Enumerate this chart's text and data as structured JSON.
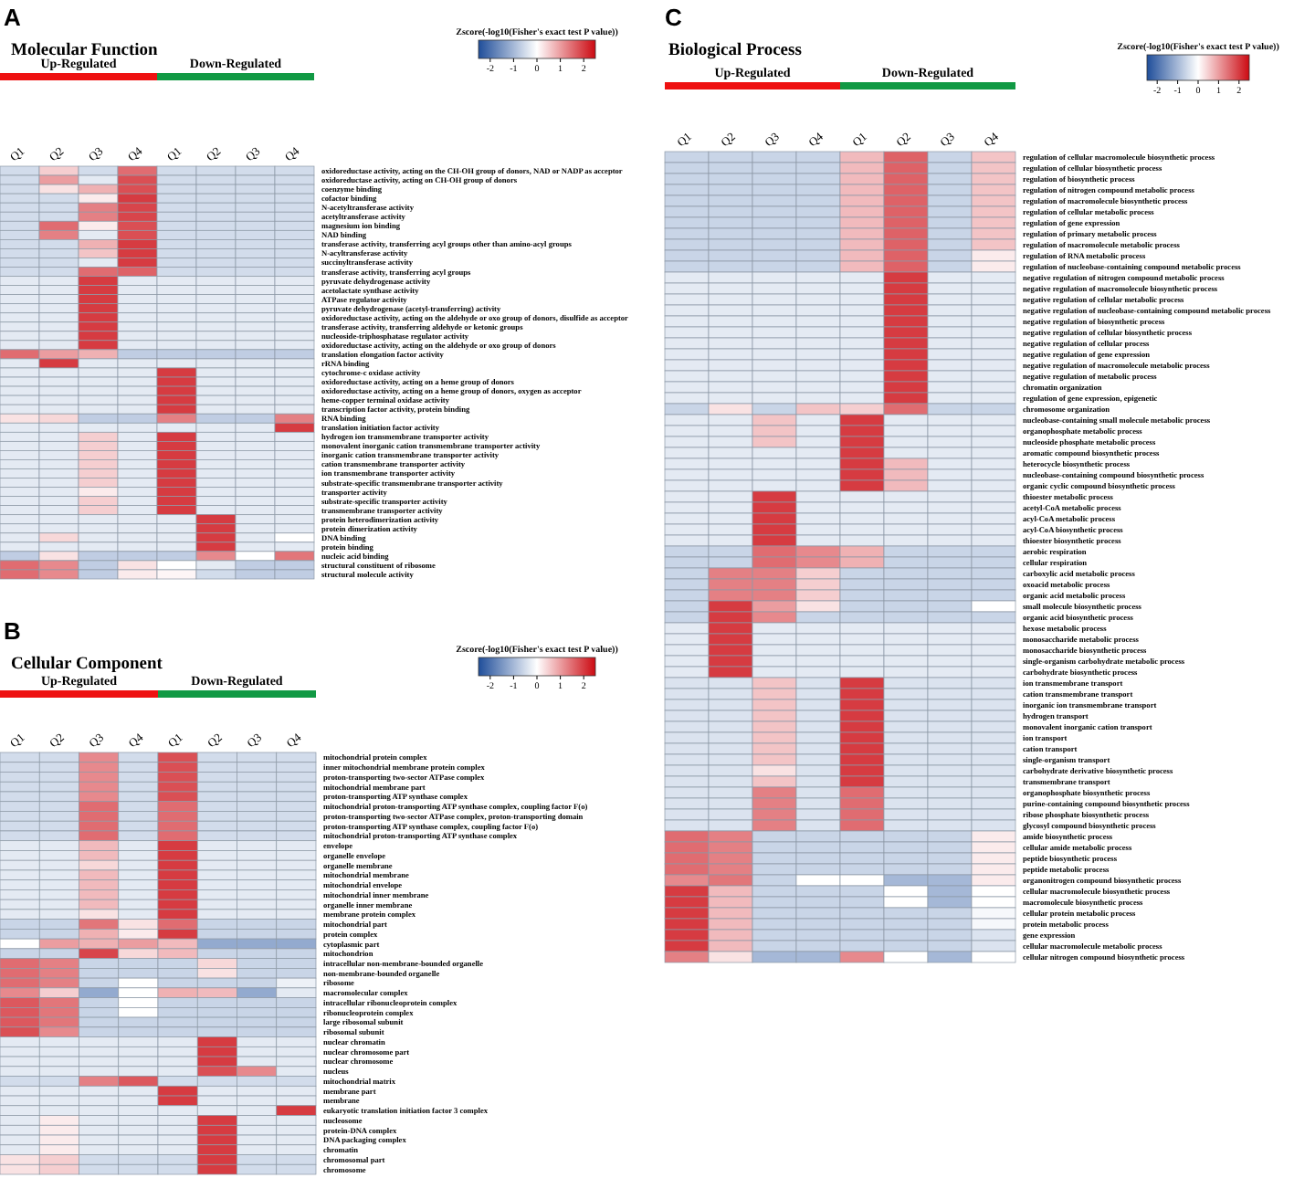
{
  "chart_data": [
    {
      "type": "heatmap",
      "title": "Molecular Function",
      "annotations": [
        "A",
        "Up-Regulated",
        "Down-Regulated"
      ],
      "clabel": "Zscore(-log10(Fisher's exact test P value))",
      "clim": [
        -2.5,
        2.5
      ],
      "cticks": [
        -2,
        -1,
        0,
        1,
        2
      ],
      "categories": [
        "Q1",
        "Q2",
        "Q3",
        "Q4",
        "Q1",
        "Q2",
        "Q3",
        "Q4"
      ],
      "y_categories": [
        "oxidoreductase activity, acting on the CH-OH group of donors, NAD or NADP as acceptor",
        "oxidoreductase activity, acting on CH-OH group of donors",
        "coenzyme binding",
        "cofactor binding",
        "N-acetyltransferase activity",
        "acetyltransferase activity",
        "magnesium ion binding",
        "NAD binding",
        "transferase activity, transferring acyl groups other than amino-acyl groups",
        "N-acyltransferase activity",
        "succinyltransferase activity",
        "transferase activity, transferring acyl groups",
        "pyruvate dehydrogenase activity",
        "acetolactate synthase activity",
        "ATPase regulator activity",
        "pyruvate dehydrogenase (acetyl-transferring) activity",
        "oxidoreductase activity, acting on the aldehyde or oxo group of donors, disulfide as acceptor",
        "transferase activity, transferring aldehyde or ketonic groups",
        "nucleoside-triphosphatase regulator activity",
        "oxidoreductase activity, acting on the aldehyde or oxo group of donors",
        "translation elongation factor activity",
        "rRNA binding",
        "cytochrome-c oxidase activity",
        "oxidoreductase activity, acting on a heme group of donors",
        "oxidoreductase activity, acting on a heme group of donors, oxygen as acceptor",
        "heme-copper terminal oxidase activity",
        "transcription factor activity, protein binding",
        "RNA binding",
        "translation initiation factor activity",
        "hydrogen ion transmembrane transporter activity",
        "monovalent inorganic cation transmembrane transporter activity",
        "inorganic cation transmembrane transporter activity",
        "cation transmembrane transporter activity",
        "ion transmembrane transporter activity",
        "substrate-specific transmembrane transporter activity",
        "transporter activity",
        "substrate-specific transporter activity",
        "transmembrane transporter activity",
        "protein heterodimerization activity",
        "protein dimerization activity",
        "DNA binding",
        "protein binding",
        "nucleic acid binding",
        "structural constituent of ribosome",
        "structural molecule activity"
      ],
      "cells": [
        [
          -0.5,
          0.5,
          -0.5,
          1.5,
          -0.5,
          -0.5,
          -0.5,
          -0.5
        ],
        [
          -0.5,
          1,
          -0.3,
          1.8,
          -0.5,
          -0.5,
          -0.5,
          -0.5
        ],
        [
          -0.5,
          0.3,
          0.8,
          1.8,
          -0.5,
          -0.5,
          -0.5,
          -0.5
        ],
        [
          -0.5,
          -0.5,
          0.2,
          2,
          -0.5,
          -0.5,
          -0.5,
          -0.5
        ],
        [
          -0.5,
          -0.5,
          1.3,
          1.9,
          -0.5,
          -0.5,
          -0.5,
          -0.5
        ],
        [
          -0.5,
          -0.5,
          1.3,
          1.9,
          -0.5,
          -0.5,
          -0.5,
          -0.5
        ],
        [
          -0.5,
          1.5,
          0.2,
          1.8,
          -0.5,
          -0.5,
          -0.5,
          -0.5
        ],
        [
          -0.5,
          1.3,
          -0.3,
          1.8,
          -0.5,
          -0.5,
          -0.5,
          -0.5
        ],
        [
          -0.5,
          -0.5,
          0.8,
          2,
          -0.5,
          -0.5,
          -0.5,
          -0.5
        ],
        [
          -0.5,
          -0.5,
          0.6,
          2,
          -0.5,
          -0.5,
          -0.5,
          -0.5
        ],
        [
          -0.5,
          -0.5,
          -0.3,
          2,
          -0.5,
          -0.5,
          -0.5,
          -0.5
        ],
        [
          -0.5,
          -0.5,
          1.5,
          1.6,
          -0.5,
          -0.5,
          -0.5,
          -0.5
        ],
        [
          -0.3,
          -0.3,
          2,
          -0.3,
          -0.3,
          -0.3,
          -0.3,
          -0.3
        ],
        [
          -0.3,
          -0.3,
          2,
          -0.3,
          -0.3,
          -0.3,
          -0.3,
          -0.3
        ],
        [
          -0.3,
          -0.3,
          2,
          -0.3,
          -0.3,
          -0.3,
          -0.3,
          -0.3
        ],
        [
          -0.3,
          -0.3,
          2,
          -0.3,
          -0.3,
          -0.3,
          -0.3,
          -0.3
        ],
        [
          -0.3,
          -0.3,
          2,
          -0.3,
          -0.3,
          -0.3,
          -0.3,
          -0.3
        ],
        [
          -0.3,
          -0.3,
          2,
          -0.3,
          -0.3,
          -0.3,
          -0.3,
          -0.3
        ],
        [
          -0.3,
          -0.3,
          2,
          -0.3,
          -0.3,
          -0.3,
          -0.3,
          -0.3
        ],
        [
          -0.3,
          -0.3,
          2,
          -0.3,
          -0.3,
          -0.3,
          -0.3,
          -0.3
        ],
        [
          1.5,
          1,
          0.8,
          -0.7,
          -0.7,
          -0.7,
          -0.7,
          -0.7
        ],
        [
          -0.3,
          2,
          -0.3,
          -0.3,
          -0.3,
          -0.3,
          -0.3,
          -0.3
        ],
        [
          -0.3,
          -0.3,
          -0.3,
          -0.3,
          2,
          -0.3,
          -0.3,
          -0.3
        ],
        [
          -0.3,
          -0.3,
          -0.3,
          -0.3,
          2,
          -0.3,
          -0.3,
          -0.3
        ],
        [
          -0.3,
          -0.3,
          -0.3,
          -0.3,
          2,
          -0.3,
          -0.3,
          -0.3
        ],
        [
          -0.3,
          -0.3,
          -0.3,
          -0.3,
          2,
          -0.3,
          -0.3,
          -0.3
        ],
        [
          -0.3,
          -0.3,
          -0.3,
          -0.3,
          2,
          -0.3,
          -0.3,
          -0.3
        ],
        [
          0.3,
          0.4,
          -0.7,
          -0.7,
          1.3,
          -0.7,
          -0.7,
          1.3
        ],
        [
          -0.3,
          -0.3,
          -0.3,
          -0.3,
          -0.3,
          -0.3,
          -0.3,
          2
        ],
        [
          -0.3,
          -0.3,
          0.5,
          -0.3,
          2,
          -0.3,
          -0.3,
          -0.3
        ],
        [
          -0.3,
          -0.3,
          0.5,
          -0.3,
          2,
          -0.3,
          -0.3,
          -0.3
        ],
        [
          -0.3,
          -0.3,
          0.5,
          -0.3,
          2,
          -0.3,
          -0.3,
          -0.3
        ],
        [
          -0.3,
          -0.3,
          0.5,
          -0.3,
          2,
          -0.3,
          -0.3,
          -0.3
        ],
        [
          -0.3,
          -0.3,
          0.5,
          -0.3,
          2,
          -0.3,
          -0.3,
          -0.3
        ],
        [
          -0.3,
          -0.3,
          0.5,
          -0.3,
          2,
          -0.3,
          -0.3,
          -0.3
        ],
        [
          -0.3,
          -0.3,
          0.2,
          -0.3,
          2,
          -0.3,
          -0.3,
          -0.3
        ],
        [
          -0.3,
          -0.3,
          0.5,
          -0.3,
          2,
          -0.3,
          -0.3,
          -0.3
        ],
        [
          -0.3,
          -0.3,
          0.5,
          -0.3,
          2,
          -0.3,
          -0.3,
          -0.3
        ],
        [
          -0.3,
          -0.3,
          -0.3,
          -0.3,
          -0.3,
          2,
          -0.3,
          -0.3
        ],
        [
          -0.3,
          -0.3,
          -0.3,
          -0.3,
          -0.3,
          2,
          -0.3,
          -0.3
        ],
        [
          -0.3,
          0.4,
          -0.3,
          -0.3,
          -0.3,
          2,
          -0.3,
          0
        ],
        [
          -0.3,
          -0.3,
          -0.3,
          -0.3,
          -0.3,
          2,
          -0.3,
          -0.3
        ],
        [
          -0.7,
          0.3,
          -0.7,
          -0.7,
          -0.7,
          1.2,
          0,
          1.4
        ],
        [
          1.5,
          1.2,
          -0.7,
          0.3,
          0,
          -0.3,
          -0.7,
          -0.7
        ],
        [
          1.5,
          1.2,
          -0.7,
          0.2,
          0.1,
          -0.5,
          -0.7,
          -0.7
        ]
      ]
    },
    {
      "type": "heatmap",
      "title": "Cellular Component",
      "annotations": [
        "B",
        "Up-Regulated",
        "Down-Regulated"
      ],
      "clabel": "Zscore(-log10(Fisher's exact test P value))",
      "clim": [
        -2.5,
        2.5
      ],
      "cticks": [
        -2,
        -1,
        0,
        1,
        2
      ],
      "categories": [
        "Q1",
        "Q2",
        "Q3",
        "Q4",
        "Q1",
        "Q2",
        "Q3",
        "Q4"
      ],
      "y_categories": [
        "mitochondrial protein complex",
        "inner mitochondrial membrane protein complex",
        "proton-transporting two-sector ATPase complex",
        "mitochondrial membrane part",
        "proton-transporting ATP synthase complex",
        "mitochondrial proton-transporting ATP synthase complex, coupling factor F(o)",
        "proton-transporting two-sector ATPase complex, proton-transporting domain",
        "proton-transporting ATP synthase complex, coupling factor F(o)",
        "mitochondrial proton-transporting ATP synthase complex",
        "envelope",
        "organelle envelope",
        "organelle membrane",
        "mitochondrial membrane",
        "mitochondrial envelope",
        "mitochondrial inner membrane",
        "organelle inner membrane",
        "membrane protein complex",
        "mitochondrial part",
        "protein complex",
        "cytoplasmic part",
        "mitochondrion",
        "intracellular non-membrane-bounded organelle",
        "non-membrane-bounded organelle",
        "ribosome",
        "macromolecular complex",
        "intracellular ribonucleoprotein complex",
        "ribonucleoprotein complex",
        "large ribosomal subunit",
        "ribosomal subunit",
        "nuclear chromatin",
        "nuclear chromosome part",
        "nuclear chromosome",
        "nucleus",
        "mitochondrial matrix",
        "membrane part",
        "membrane",
        "eukaryotic translation initiation factor 3 complex",
        "nucleosome",
        "protein-DNA complex",
        "DNA packaging complex",
        "chromatin",
        "chromosomal part",
        "chromosome"
      ],
      "cells": [
        [
          -0.5,
          -0.5,
          1.2,
          -0.5,
          1.8,
          -0.5,
          -0.5,
          -0.5
        ],
        [
          -0.5,
          -0.5,
          1.2,
          -0.5,
          1.8,
          -0.5,
          -0.5,
          -0.5
        ],
        [
          -0.5,
          -0.5,
          1.2,
          -0.5,
          1.8,
          -0.5,
          -0.5,
          -0.5
        ],
        [
          -0.5,
          -0.5,
          1.2,
          -0.5,
          1.8,
          -0.5,
          -0.5,
          -0.5
        ],
        [
          -0.5,
          -0.5,
          1.2,
          -0.5,
          1.8,
          -0.5,
          -0.5,
          -0.5
        ],
        [
          -0.5,
          -0.5,
          1.5,
          -0.5,
          1.5,
          -0.5,
          -0.5,
          -0.5
        ],
        [
          -0.5,
          -0.5,
          1.5,
          -0.5,
          1.5,
          -0.5,
          -0.5,
          -0.5
        ],
        [
          -0.5,
          -0.5,
          1.5,
          -0.5,
          1.5,
          -0.5,
          -0.5,
          -0.5
        ],
        [
          -0.5,
          -0.5,
          1.5,
          -0.5,
          1.5,
          -0.5,
          -0.5,
          -0.5
        ],
        [
          -0.3,
          -0.3,
          0.7,
          -0.3,
          2,
          -0.3,
          -0.3,
          -0.3
        ],
        [
          -0.3,
          -0.3,
          0.7,
          -0.3,
          2,
          -0.3,
          -0.3,
          -0.3
        ],
        [
          -0.3,
          -0.3,
          0.4,
          -0.3,
          2,
          -0.3,
          -0.3,
          -0.3
        ],
        [
          -0.3,
          -0.3,
          0.7,
          -0.3,
          2,
          -0.3,
          -0.3,
          -0.3
        ],
        [
          -0.3,
          -0.3,
          0.7,
          -0.3,
          2,
          -0.3,
          -0.3,
          -0.3
        ],
        [
          -0.3,
          -0.3,
          0.7,
          -0.3,
          2,
          -0.3,
          -0.3,
          -0.3
        ],
        [
          -0.3,
          -0.3,
          0.7,
          -0.3,
          2,
          -0.3,
          -0.3,
          -0.3
        ],
        [
          -0.3,
          -0.3,
          0.3,
          -0.3,
          2,
          -0.3,
          -0.3,
          -0.3
        ],
        [
          -0.6,
          -0.6,
          1.4,
          0.3,
          1.5,
          -0.6,
          -0.6,
          -0.6
        ],
        [
          -0.6,
          -0.6,
          0.8,
          0.2,
          2,
          -0.6,
          -0.6,
          -0.6
        ],
        [
          0,
          1,
          0.8,
          1,
          0.7,
          -1.2,
          -1.2,
          -1.2
        ],
        [
          -0.6,
          -0.6,
          1.9,
          0.4,
          0.7,
          -0.6,
          -0.6,
          -0.6
        ],
        [
          1.5,
          1.3,
          -0.6,
          -0.6,
          -0.6,
          0.4,
          -0.6,
          -0.6
        ],
        [
          1.5,
          1.3,
          -0.6,
          -0.6,
          -0.6,
          0.3,
          -0.6,
          -0.6
        ],
        [
          1.5,
          1.3,
          -0.6,
          0,
          -0.6,
          -0.6,
          -0.6,
          -0.2
        ],
        [
          1.2,
          0.5,
          -1.2,
          0,
          0.8,
          0.7,
          -1.2,
          -0.3
        ],
        [
          1.7,
          1.4,
          -0.6,
          0,
          -0.6,
          -0.6,
          -0.6,
          -0.6
        ],
        [
          1.7,
          1.4,
          -0.6,
          0,
          -0.6,
          -0.6,
          -0.6,
          -0.6
        ],
        [
          1.7,
          1.4,
          -0.6,
          -0.6,
          -0.6,
          -0.6,
          -0.6,
          -0.6
        ],
        [
          1.8,
          1.2,
          -0.6,
          -0.6,
          -0.6,
          -0.6,
          -0.6,
          -0.6
        ],
        [
          -0.3,
          -0.3,
          -0.3,
          -0.3,
          -0.3,
          2,
          -0.3,
          -0.3
        ],
        [
          -0.3,
          -0.3,
          -0.3,
          -0.3,
          -0.3,
          2,
          -0.3,
          -0.3
        ],
        [
          -0.3,
          -0.3,
          -0.3,
          -0.3,
          -0.3,
          2,
          -0.3,
          -0.3
        ],
        [
          -0.3,
          -0.3,
          -0.3,
          -0.3,
          -0.3,
          1.8,
          1.2,
          -0.3
        ],
        [
          -0.5,
          -0.5,
          1.3,
          1.7,
          -0.5,
          -0.5,
          -0.5,
          -0.5
        ],
        [
          -0.3,
          -0.3,
          -0.3,
          -0.3,
          2,
          -0.3,
          -0.3,
          -0.3
        ],
        [
          -0.3,
          -0.3,
          -0.3,
          -0.3,
          2,
          -0.3,
          -0.3,
          -0.3
        ],
        [
          -0.3,
          -0.3,
          -0.3,
          -0.3,
          -0.3,
          -0.3,
          -0.3,
          2
        ],
        [
          -0.3,
          0.2,
          -0.3,
          -0.3,
          -0.3,
          2,
          -0.3,
          -0.3
        ],
        [
          -0.3,
          0.2,
          -0.3,
          -0.3,
          -0.3,
          2,
          -0.3,
          -0.3
        ],
        [
          -0.3,
          0.2,
          -0.3,
          -0.3,
          -0.3,
          2,
          -0.3,
          -0.3
        ],
        [
          -0.3,
          0.2,
          -0.3,
          -0.3,
          -0.3,
          2,
          -0.3,
          -0.3
        ],
        [
          0.3,
          0.5,
          -0.5,
          -0.5,
          -0.5,
          2,
          -0.5,
          -0.5
        ],
        [
          0.3,
          0.5,
          -0.5,
          -0.5,
          -0.5,
          2,
          -0.5,
          -0.5
        ]
      ]
    },
    {
      "type": "heatmap",
      "title": "Biological Process",
      "annotations": [
        "C",
        "Up-Regulated",
        "Down-Regulated"
      ],
      "clabel": "Zscore(-log10(Fisher's exact test P value))",
      "clim": [
        -2.5,
        2.5
      ],
      "cticks": [
        -2,
        -1,
        0,
        1,
        2
      ],
      "categories": [
        "Q1",
        "Q2",
        "Q3",
        "Q4",
        "Q1",
        "Q2",
        "Q3",
        "Q4"
      ],
      "y_categories": [
        "regulation of cellular macromolecule biosynthetic process",
        "regulation of cellular biosynthetic process",
        "regulation of biosynthetic process",
        "regulation of nitrogen compound metabolic process",
        "regulation of macromolecule biosynthetic process",
        "regulation of cellular metabolic process",
        "regulation of gene expression",
        "regulation of primary metabolic process",
        "regulation of macromolecule metabolic process",
        "regulation of RNA metabolic process",
        "regulation of nucleobase-containing compound metabolic process",
        "negative regulation of nitrogen compound metabolic process",
        "negative regulation of macromolecule biosynthetic process",
        "negative regulation of cellular metabolic process",
        "negative regulation of nucleobase-containing compound metabolic process",
        "negative regulation of biosynthetic process",
        "negative regulation of cellular biosynthetic process",
        "negative regulation of cellular process",
        "negative regulation of gene expression",
        "negative regulation of macromolecule metabolic process",
        "negative regulation of metabolic process",
        "chromatin organization",
        "regulation of gene expression, epigenetic",
        "chromosome organization",
        "nucleobase-containing small molecule metabolic process",
        "organophosphate metabolic process",
        "nucleoside phosphate metabolic process",
        "aromatic compound biosynthetic process",
        "heterocycle biosynthetic process",
        "nucleobase-containing compound biosynthetic process",
        "organic cyclic compound biosynthetic process",
        "thioester metabolic process",
        "acetyl-CoA metabolic process",
        "acyl-CoA metabolic process",
        "acyl-CoA biosynthetic process",
        "thioester biosynthetic process",
        "aerobic respiration",
        "cellular respiration",
        "carboxylic acid metabolic process",
        "oxoacid metabolic process",
        "organic acid metabolic process",
        "small molecule biosynthetic process",
        "organic acid biosynthetic process",
        "hexose metabolic process",
        "monosaccharide metabolic process",
        "monosaccharide biosynthetic process",
        "single-organism carbohydrate metabolic process",
        "carbohydrate biosynthetic process",
        "ion transmembrane transport",
        "cation transmembrane transport",
        "inorganic ion transmembrane transport",
        "hydrogen transport",
        "monovalent inorganic cation transport",
        "ion transport",
        "cation transport",
        "single-organism transport",
        "carbohydrate derivative biosynthetic process",
        "transmembrane transport",
        "organophosphate biosynthetic process",
        "purine-containing compound biosynthetic process",
        "ribose phosphate biosynthetic process",
        "glycosyl compound biosynthetic process",
        "amide biosynthetic process",
        "cellular amide metabolic process",
        "peptide biosynthetic process",
        "peptide metabolic process",
        "organonitrogen compound biosynthetic process",
        "cellular macromolecule biosynthetic process",
        "macromolecule biosynthetic process",
        "cellular protein metabolic process",
        "protein metabolic process",
        "gene expression",
        "cellular macromolecule metabolic process",
        "cellular nitrogen compound biosynthetic process"
      ],
      "cells": [
        [
          -0.6,
          -0.6,
          -0.6,
          -0.6,
          0.7,
          1.6,
          -0.6,
          0.6
        ],
        [
          -0.6,
          -0.6,
          -0.6,
          -0.6,
          0.7,
          1.6,
          -0.6,
          0.6
        ],
        [
          -0.6,
          -0.6,
          -0.6,
          -0.6,
          0.7,
          1.6,
          -0.6,
          0.6
        ],
        [
          -0.6,
          -0.6,
          -0.6,
          -0.6,
          0.7,
          1.6,
          -0.6,
          0.6
        ],
        [
          -0.6,
          -0.6,
          -0.6,
          -0.6,
          0.7,
          1.6,
          -0.6,
          0.6
        ],
        [
          -0.6,
          -0.6,
          -0.6,
          -0.6,
          0.7,
          1.6,
          -0.6,
          0.6
        ],
        [
          -0.6,
          -0.6,
          -0.6,
          -0.6,
          0.7,
          1.6,
          -0.6,
          0.6
        ],
        [
          -0.6,
          -0.6,
          -0.6,
          -0.6,
          0.7,
          1.6,
          -0.6,
          0.6
        ],
        [
          -0.6,
          -0.6,
          -0.6,
          -0.6,
          0.7,
          1.6,
          -0.6,
          0.6
        ],
        [
          -0.6,
          -0.6,
          -0.6,
          -0.6,
          0.7,
          1.6,
          -0.6,
          0.2
        ],
        [
          -0.6,
          -0.6,
          -0.6,
          -0.6,
          0.7,
          1.6,
          -0.6,
          0.2
        ],
        [
          -0.3,
          -0.3,
          -0.3,
          -0.3,
          -0.3,
          2,
          -0.3,
          -0.3
        ],
        [
          -0.3,
          -0.3,
          -0.3,
          -0.3,
          -0.3,
          2,
          -0.3,
          -0.3
        ],
        [
          -0.3,
          -0.3,
          -0.3,
          -0.3,
          -0.3,
          2,
          -0.3,
          -0.3
        ],
        [
          -0.3,
          -0.3,
          -0.3,
          -0.3,
          -0.3,
          2,
          -0.3,
          -0.3
        ],
        [
          -0.3,
          -0.3,
          -0.3,
          -0.3,
          -0.3,
          2,
          -0.3,
          -0.3
        ],
        [
          -0.3,
          -0.3,
          -0.3,
          -0.3,
          -0.3,
          2,
          -0.3,
          -0.3
        ],
        [
          -0.3,
          -0.3,
          -0.3,
          -0.3,
          -0.3,
          2,
          -0.3,
          -0.3
        ],
        [
          -0.3,
          -0.3,
          -0.3,
          -0.3,
          -0.3,
          2,
          -0.3,
          -0.3
        ],
        [
          -0.3,
          -0.3,
          -0.3,
          -0.3,
          -0.3,
          2,
          -0.3,
          -0.3
        ],
        [
          -0.3,
          -0.3,
          -0.3,
          -0.3,
          -0.3,
          2,
          -0.3,
          -0.3
        ],
        [
          -0.3,
          -0.3,
          -0.3,
          -0.3,
          -0.3,
          2,
          -0.3,
          -0.3
        ],
        [
          -0.3,
          -0.3,
          -0.3,
          -0.3,
          -0.3,
          2,
          -0.3,
          -0.3
        ],
        [
          -0.6,
          0.3,
          -0.6,
          0.6,
          0.5,
          1.5,
          -0.6,
          -0.6
        ],
        [
          -0.3,
          -0.3,
          0.6,
          -0.3,
          2,
          -0.3,
          -0.3,
          -0.3
        ],
        [
          -0.3,
          -0.3,
          0.6,
          -0.3,
          2,
          -0.3,
          -0.3,
          -0.3
        ],
        [
          -0.3,
          -0.3,
          0.6,
          -0.3,
          2,
          -0.3,
          -0.3,
          -0.3
        ],
        [
          -0.3,
          -0.3,
          -0.3,
          -0.3,
          2,
          -0.3,
          -0.3,
          -0.3
        ],
        [
          -0.3,
          -0.3,
          -0.3,
          -0.3,
          2,
          0.7,
          -0.3,
          -0.3
        ],
        [
          -0.3,
          -0.3,
          -0.3,
          -0.3,
          2,
          0.7,
          -0.3,
          -0.3
        ],
        [
          -0.3,
          -0.3,
          -0.3,
          -0.3,
          2,
          0.7,
          -0.3,
          -0.3
        ],
        [
          -0.3,
          -0.3,
          2,
          -0.3,
          -0.3,
          -0.3,
          -0.3,
          -0.3
        ],
        [
          -0.3,
          -0.3,
          2,
          -0.3,
          -0.3,
          -0.3,
          -0.3,
          -0.3
        ],
        [
          -0.3,
          -0.3,
          2,
          -0.3,
          -0.3,
          -0.3,
          -0.3,
          -0.3
        ],
        [
          -0.3,
          -0.3,
          2,
          -0.3,
          -0.3,
          -0.3,
          -0.3,
          -0.3
        ],
        [
          -0.3,
          -0.3,
          2,
          -0.3,
          -0.3,
          -0.3,
          -0.3,
          -0.3
        ],
        [
          -0.6,
          -0.6,
          1.5,
          1.2,
          0.8,
          -0.6,
          -0.6,
          -0.6
        ],
        [
          -0.6,
          -0.6,
          1.5,
          1.2,
          0.8,
          -0.6,
          -0.6,
          -0.6
        ],
        [
          -0.6,
          1.3,
          1.3,
          0.5,
          -0.6,
          -0.6,
          -0.6,
          -0.6
        ],
        [
          -0.6,
          1.3,
          1.3,
          0.5,
          -0.6,
          -0.6,
          -0.6,
          -0.6
        ],
        [
          -0.6,
          1.3,
          1.3,
          0.5,
          -0.6,
          -0.6,
          -0.6,
          -0.6
        ],
        [
          -0.6,
          2,
          1,
          0.3,
          -0.6,
          -0.6,
          -0.6,
          0
        ],
        [
          -0.6,
          2,
          1.2,
          -0.6,
          -0.6,
          -0.6,
          -0.6,
          -0.6
        ],
        [
          -0.3,
          2,
          -0.3,
          -0.3,
          -0.3,
          -0.3,
          -0.3,
          -0.3
        ],
        [
          -0.3,
          2,
          -0.3,
          -0.3,
          -0.3,
          -0.3,
          -0.3,
          -0.3
        ],
        [
          -0.3,
          2,
          -0.3,
          -0.3,
          -0.3,
          -0.3,
          -0.3,
          -0.3
        ],
        [
          -0.3,
          2,
          -0.3,
          -0.3,
          -0.3,
          -0.3,
          -0.3,
          -0.3
        ],
        [
          -0.3,
          2,
          -0.3,
          -0.3,
          -0.3,
          -0.3,
          -0.3,
          -0.3
        ],
        [
          -0.4,
          -0.4,
          0.6,
          -0.4,
          2,
          -0.4,
          -0.4,
          -0.4
        ],
        [
          -0.4,
          -0.4,
          0.6,
          -0.4,
          2,
          -0.4,
          -0.4,
          -0.4
        ],
        [
          -0.4,
          -0.4,
          0.6,
          -0.4,
          2,
          -0.4,
          -0.4,
          -0.4
        ],
        [
          -0.4,
          -0.4,
          0.6,
          -0.4,
          2,
          -0.4,
          -0.4,
          -0.4
        ],
        [
          -0.4,
          -0.4,
          0.6,
          -0.4,
          2,
          -0.4,
          -0.4,
          -0.4
        ],
        [
          -0.4,
          -0.4,
          0.6,
          -0.4,
          2,
          -0.4,
          -0.4,
          -0.4
        ],
        [
          -0.4,
          -0.4,
          0.6,
          -0.4,
          2,
          -0.4,
          -0.4,
          -0.4
        ],
        [
          -0.4,
          -0.4,
          0.6,
          -0.4,
          2,
          -0.4,
          -0.4,
          -0.4
        ],
        [
          -0.4,
          -0.4,
          0.3,
          -0.4,
          2,
          -0.4,
          -0.4,
          -0.4
        ],
        [
          -0.4,
          -0.4,
          0.6,
          -0.4,
          2,
          -0.4,
          -0.4,
          -0.4
        ],
        [
          -0.4,
          -0.4,
          1.3,
          -0.4,
          1.5,
          -0.4,
          -0.4,
          -0.4
        ],
        [
          -0.4,
          -0.4,
          1.3,
          -0.4,
          1.5,
          -0.4,
          -0.4,
          -0.4
        ],
        [
          -0.4,
          -0.4,
          1.3,
          -0.4,
          1.5,
          -0.4,
          -0.4,
          -0.4
        ],
        [
          -0.4,
          -0.4,
          1.3,
          -0.4,
          1.5,
          -0.4,
          -0.4,
          -0.4
        ],
        [
          1.5,
          1.3,
          -0.6,
          -0.6,
          -0.6,
          -0.6,
          -0.6,
          0.2
        ],
        [
          1.5,
          1.3,
          -0.6,
          -0.6,
          -0.6,
          -0.6,
          -0.6,
          0.2
        ],
        [
          1.5,
          1.3,
          -0.6,
          -0.6,
          -0.6,
          -0.6,
          -0.6,
          0.2
        ],
        [
          1.5,
          1.3,
          -0.6,
          -0.6,
          -0.6,
          -0.6,
          -0.6,
          0.2
        ],
        [
          1.2,
          1.4,
          -0.6,
          0,
          0,
          -1,
          -1,
          0.2
        ],
        [
          2,
          0.7,
          -0.6,
          -0.6,
          -0.6,
          0,
          -1,
          0
        ],
        [
          2,
          0.7,
          -0.6,
          -0.6,
          -0.6,
          0,
          -1,
          0
        ],
        [
          2,
          0.7,
          -0.6,
          -0.6,
          -0.6,
          -0.6,
          -0.6,
          -0.1
        ],
        [
          2,
          0.7,
          -0.6,
          -0.6,
          -0.6,
          -0.6,
          -0.6,
          -0.1
        ],
        [
          2,
          0.7,
          -0.6,
          -0.6,
          -0.6,
          -0.6,
          -0.6,
          -0.4
        ],
        [
          2,
          0.7,
          -0.6,
          -0.6,
          -0.6,
          -0.6,
          -0.6,
          -0.4
        ],
        [
          1.3,
          0.3,
          -1,
          -1,
          1.2,
          0,
          -1,
          0
        ]
      ]
    }
  ]
}
